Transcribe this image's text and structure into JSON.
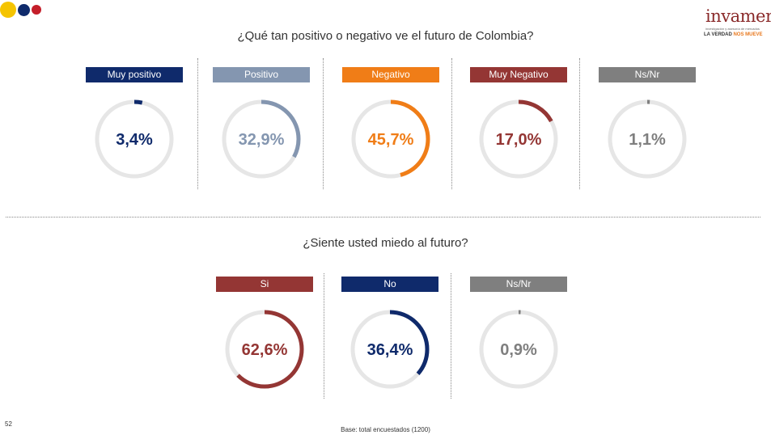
{
  "header": {
    "dot_colors": [
      "#f5c400",
      "#0f2a6b",
      "#c41e2a"
    ],
    "logo_name": "invamer",
    "logo_subtitle": "investigación y asesoría de mercados",
    "slogan_main": "LA VERDAD",
    "slogan_accent": "NOS MUEVE"
  },
  "chart_data": [
    {
      "type": "pie",
      "title": "¿Qué tan positivo o negativo ve el futuro de Colombia?",
      "categories": [
        "Muy positivo",
        "Positivo",
        "Negativo",
        "Muy Negativo",
        "Ns/Nr"
      ],
      "values": [
        3.4,
        32.9,
        45.7,
        17.0,
        1.1
      ],
      "value_labels": [
        "3,4%",
        "32,9%",
        "45,7%",
        "17,0%",
        "1,1%"
      ],
      "colors": [
        "#0f2a6b",
        "#8496b0",
        "#f07d17",
        "#943634",
        "#7f7f7f"
      ],
      "track_color": "#e6e6e6"
    },
    {
      "type": "pie",
      "title": "¿Siente usted miedo al futuro?",
      "categories": [
        "Si",
        "No",
        "Ns/Nr"
      ],
      "values": [
        62.6,
        36.4,
        0.9
      ],
      "value_labels": [
        "62,6%",
        "36,4%",
        "0,9%"
      ],
      "colors": [
        "#943634",
        "#0f2a6b",
        "#7f7f7f"
      ],
      "track_color": "#e6e6e6"
    }
  ],
  "footer": {
    "page_number": "52",
    "base_note": "Base: total encuestados (1200)"
  }
}
